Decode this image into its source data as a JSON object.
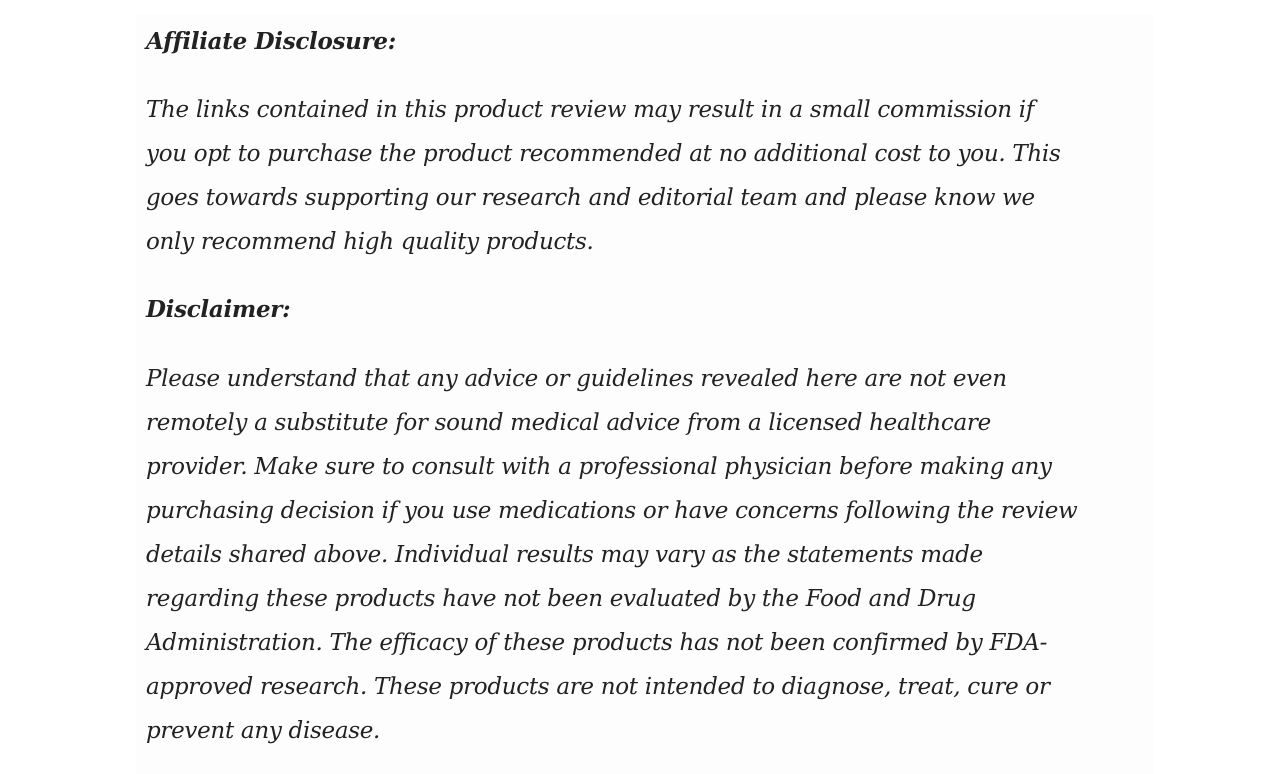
{
  "affiliate": {
    "heading": "Affiliate Disclosure:",
    "lines": [
      "The links contained in this product review may result in a small commission if",
      "you opt to purchase the product recommended at no additional cost to you. This",
      "goes towards supporting our research and editorial team and please know we",
      "only recommend high quality products."
    ]
  },
  "disclaimer": {
    "heading": "Disclaimer:",
    "lines": [
      "Please understand that any advice or guidelines revealed here are not even",
      "remotely a substitute for sound medical advice from a licensed healthcare",
      "provider. Make sure to consult with a professional physician before making any",
      "purchasing decision if you use medications or have concerns following the review",
      "details shared above. Individual results may vary as the statements made",
      "regarding these products have not been evaluated by the Food and Drug",
      "Administration. The efficacy of these products has not been confirmed by FDA-",
      "approved research. These products are not intended to diagnose, treat, cure or",
      "prevent any disease."
    ]
  }
}
